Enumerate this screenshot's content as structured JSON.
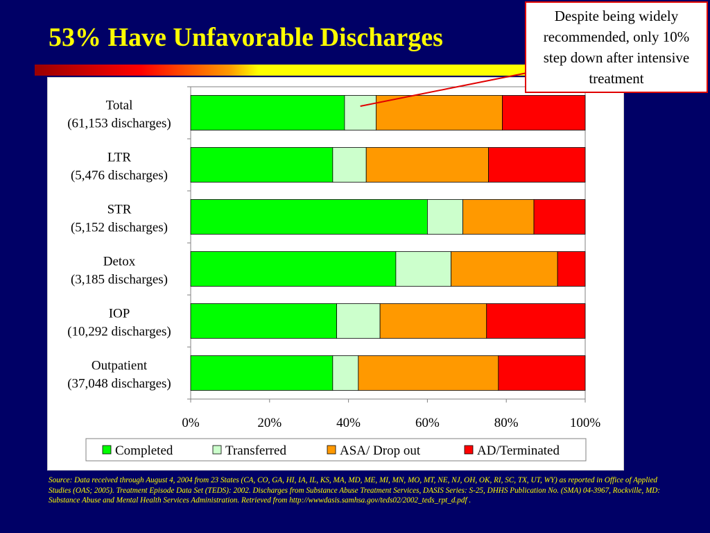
{
  "slide": {
    "title": "53% Have Unfavorable Discharges",
    "callout": "Despite being widely recommended, only 10% step down after intensive treatment",
    "source": "Source: Data received through August 4, 2004 from 23 States (CA, CO, GA, HI, IA, IL, KS, MA, MD, ME, MI, MN, MO, MT, NE, NJ, OH, OK, RI, SC, TX, UT, WY)  as reported in Office of Applied Studies (OAS;  2005). Treatment Episode Data Set (TEDS): 2002. Discharges from Substance Abuse Treatment Services, DASIS Series: S-25, DHHS Publication No. (SMA) 04-3967, Rockville, MD: Substance Abuse and Mental Health Services Administration. Retrieved from http://wwwdasis.samhsa.gov/teds02/2002_teds_rpt_d.pdf ."
  },
  "chart_data": {
    "type": "bar",
    "orientation": "horizontal",
    "stacked": "percent",
    "categories": [
      [
        "Total",
        "(61,153 discharges)"
      ],
      [
        "LTR",
        "(5,476 discharges)"
      ],
      [
        "STR",
        "(5,152 discharges)"
      ],
      [
        "Detox",
        "(3,185 discharges)"
      ],
      [
        "IOP",
        "(10,292 discharges)"
      ],
      [
        "Outpatient",
        "(37,048 discharges)"
      ]
    ],
    "series": [
      {
        "name": "Completed",
        "color": "#00ff00",
        "values": [
          39,
          36,
          60,
          52,
          37,
          36
        ]
      },
      {
        "name": "Transferred",
        "color": "#ccffcc",
        "values": [
          8,
          8.5,
          9,
          14,
          11,
          6.5
        ]
      },
      {
        "name": "ASA/ Drop out",
        "color": "#ff9900",
        "values": [
          32,
          31,
          18,
          27,
          27,
          35.5
        ]
      },
      {
        "name": "AD/Terminated",
        "color": "#ff0000",
        "values": [
          21,
          24.5,
          13,
          7,
          25,
          22
        ]
      }
    ],
    "xlim": [
      0,
      100
    ],
    "xticks": [
      "0%",
      "20%",
      "40%",
      "60%",
      "80%",
      "100%"
    ],
    "xtick_values": [
      0,
      20,
      40,
      60,
      80,
      100
    ],
    "grid": false,
    "legend_position": "bottom"
  }
}
